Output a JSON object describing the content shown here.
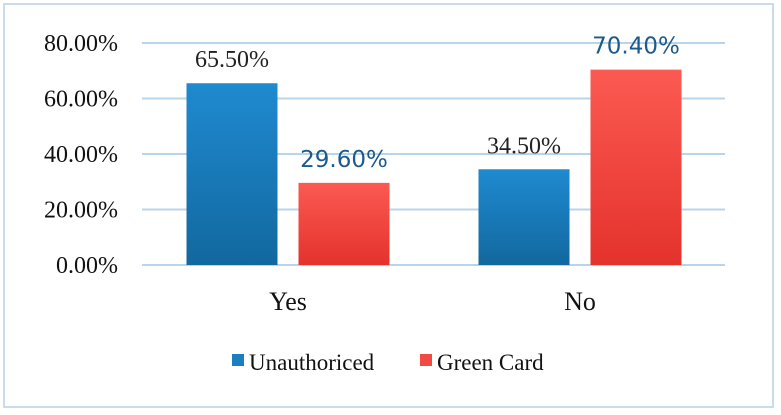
{
  "chart_data": {
    "type": "bar",
    "categories": [
      "Yes",
      "No"
    ],
    "series": [
      {
        "name": "Unauthoriced",
        "values": [
          65.5,
          34.5
        ],
        "labels": [
          "65.50%",
          "34.50%"
        ],
        "color": "#1a7ec0"
      },
      {
        "name": "Green Card",
        "values": [
          29.6,
          70.4
        ],
        "labels": [
          "29.60%",
          "70.40%"
        ],
        "color": "#f04a42"
      }
    ],
    "y_ticks": [
      "0.00%",
      "20.00%",
      "40.00%",
      "60.00%",
      "80.00%"
    ],
    "ylim": [
      0,
      80
    ],
    "grid": true,
    "legend": "bottom",
    "border_color": "#c8dcee",
    "grid_color": "#b9d5ea"
  }
}
